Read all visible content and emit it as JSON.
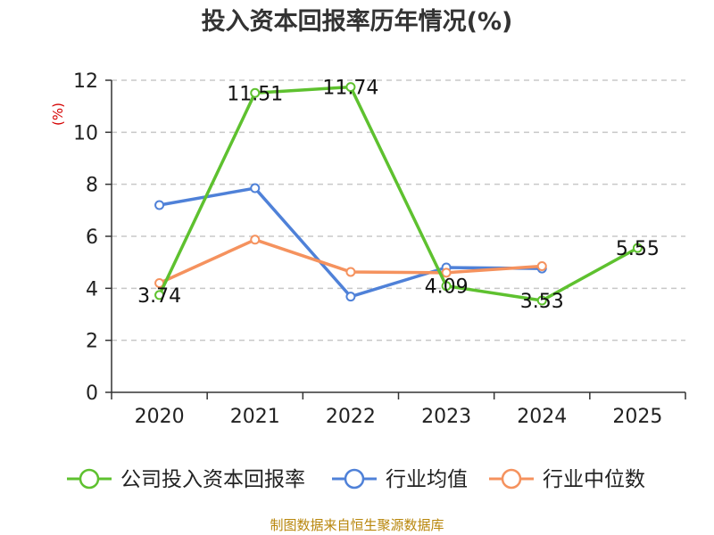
{
  "chart_data": {
    "type": "line",
    "title": "投入资本回报率历年情况(%)",
    "ylabel": "(%)",
    "xlabel": "",
    "categories": [
      "2020",
      "2021",
      "2022",
      "2023",
      "2024",
      "2025"
    ],
    "ylim": [
      0,
      12
    ],
    "yticks": [
      0,
      2,
      4,
      6,
      8,
      10,
      12
    ],
    "grid": true,
    "legend_position": "bottom",
    "series": [
      {
        "name": "公司投入资本回报率",
        "color": "#5ec12f",
        "values": [
          3.74,
          11.51,
          11.74,
          4.09,
          3.53,
          5.55
        ],
        "labels": [
          "3.74",
          "11.51",
          "11.74",
          "4.09",
          "3.53",
          "5.55"
        ]
      },
      {
        "name": "行业均值",
        "color": "#4f81d8",
        "values": [
          7.2,
          7.85,
          3.68,
          4.8,
          4.76,
          null
        ]
      },
      {
        "name": "行业中位数",
        "color": "#f5925e",
        "values": [
          4.2,
          5.87,
          4.63,
          4.6,
          4.85,
          null
        ]
      }
    ],
    "source": "制图数据来自恒生聚源数据库"
  }
}
